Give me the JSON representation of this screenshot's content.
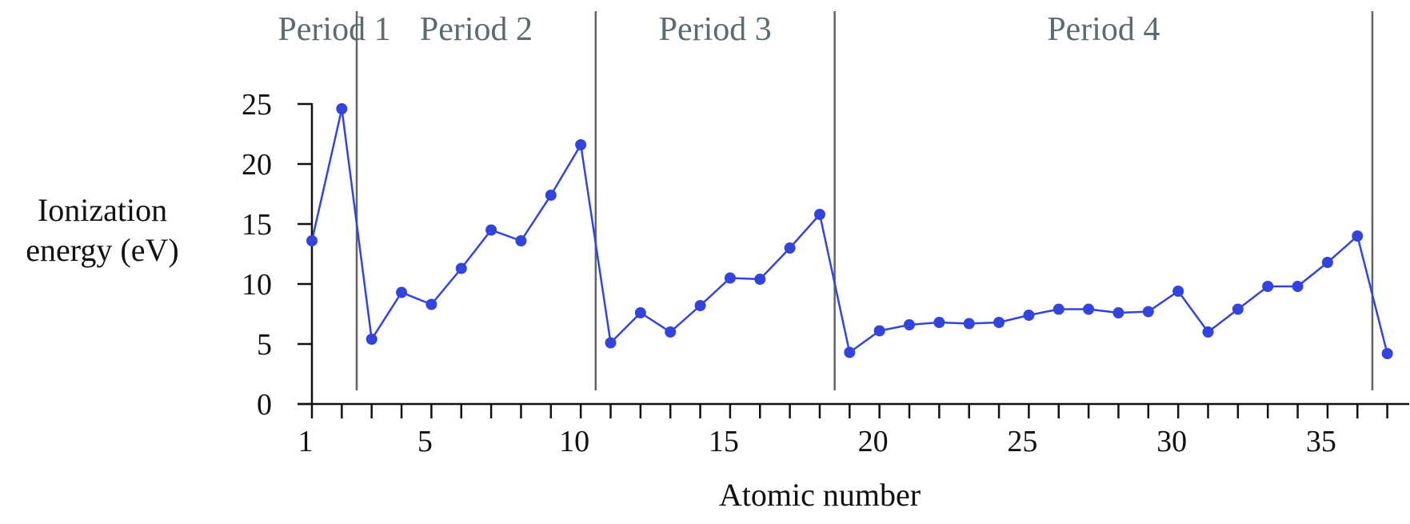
{
  "chart_data": {
    "type": "line",
    "xlabel": "Atomic number",
    "ylabel": [
      "Ionization",
      "energy (eV)"
    ],
    "ylim": [
      0,
      25
    ],
    "xlim": [
      1,
      37
    ],
    "yticks": [
      0,
      5,
      10,
      15,
      20,
      25
    ],
    "xtick_labels": [
      1,
      5,
      10,
      15,
      20,
      25,
      30,
      35
    ],
    "minor_xticks": [
      1,
      2,
      3,
      4,
      5,
      6,
      7,
      8,
      9,
      10,
      11,
      12,
      13,
      14,
      15,
      16,
      17,
      18,
      19,
      20,
      21,
      22,
      23,
      24,
      25,
      26,
      27,
      28,
      29,
      30,
      31,
      32,
      33,
      34,
      35,
      36,
      37
    ],
    "periods": [
      {
        "label": "Period 1",
        "start": 1,
        "end": 2.5
      },
      {
        "label": "Period 2",
        "start": 2.5,
        "end": 10.5
      },
      {
        "label": "Period 3",
        "start": 10.5,
        "end": 18.5
      },
      {
        "label": "Period 4",
        "start": 18.5,
        "end": 36.5
      }
    ],
    "period_boundaries": [
      2.5,
      10.5,
      18.5,
      36.5
    ],
    "series": [
      {
        "color": "#3344dd",
        "x": [
          1,
          2,
          3,
          4,
          5,
          6,
          7,
          8,
          9,
          10,
          11,
          12,
          13,
          14,
          15,
          16,
          17,
          18,
          19,
          20,
          21,
          22,
          23,
          24,
          25,
          26,
          27,
          28,
          29,
          30,
          31,
          32,
          33,
          34,
          35,
          36,
          37
        ],
        "values": [
          13.6,
          24.6,
          5.4,
          9.3,
          8.3,
          11.3,
          14.5,
          13.6,
          17.4,
          21.6,
          5.1,
          7.6,
          6.0,
          8.2,
          10.5,
          10.4,
          13.0,
          15.8,
          4.3,
          6.1,
          6.6,
          6.8,
          6.7,
          6.8,
          7.4,
          7.9,
          7.9,
          7.6,
          7.7,
          9.4,
          6.0,
          7.9,
          9.8,
          9.8,
          11.8,
          14.0,
          4.2
        ]
      }
    ]
  }
}
